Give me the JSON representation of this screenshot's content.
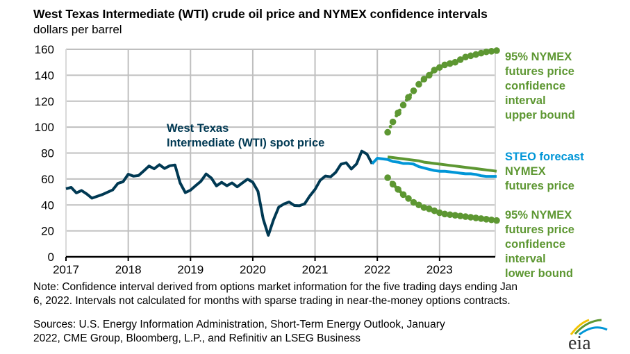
{
  "title": "West Texas Intermediate (WTI) crude oil price and NYMEX confidence intervals",
  "subtitle": "dollars per barrel",
  "labels": {
    "wti_line1": "West Texas",
    "wti_line2": "Intermediate (WTI) spot price",
    "upper": [
      "95% NYMEX",
      "futures price",
      "confidence",
      "interval",
      "upper bound"
    ],
    "steo": "STEO forecast",
    "nymex": [
      "NYMEX",
      "futures price"
    ],
    "lower": [
      "95% NYMEX",
      "futures price",
      "confidence",
      "interval",
      "lower bound"
    ]
  },
  "note": [
    "Note: Confidence interval derived from options market information for the five trading days ending Jan",
    "6, 2022. Intervals not calculated for months with sparse trading in near-the-money options contracts."
  ],
  "sources": [
    "Sources: U.S. Energy Information Administration, Short-Term Energy Outlook, January",
    "2022, CME Group, Bloomberg, L.P., and Refinitiv an LSEG Business"
  ],
  "logo_text": "eia",
  "colors": {
    "wti": "#003953",
    "steo": "#0096d7",
    "nymex": "#5d9732",
    "grid": "#bfbfbf"
  },
  "chart_data": {
    "type": "line",
    "title": "West Texas Intermediate (WTI) crude oil price and NYMEX confidence intervals",
    "ylabel": "dollars per barrel",
    "ylim": [
      0,
      160
    ],
    "yticks": [
      0,
      20,
      40,
      60,
      80,
      100,
      120,
      140,
      160
    ],
    "xticks": [
      "2017",
      "2018",
      "2019",
      "2020",
      "2021",
      "2022",
      "2023"
    ],
    "xrange": [
      "2017-01",
      "2023-12"
    ],
    "grid": true,
    "series": [
      {
        "name": "West Texas Intermediate (WTI) spot price",
        "start": "2017-01",
        "values": [
          52.5,
          53.5,
          49.3,
          51.1,
          48.5,
          45.2,
          46.6,
          48.0,
          49.8,
          51.6,
          56.6,
          57.9,
          63.7,
          62.2,
          62.7,
          66.3,
          70.0,
          67.9,
          71.0,
          68.1,
          70.2,
          70.8,
          57.0,
          49.5,
          51.4,
          54.9,
          58.2,
          63.9,
          60.8,
          54.7,
          57.4,
          54.8,
          57.0,
          54.0,
          57.0,
          59.9,
          57.5,
          50.5,
          29.2,
          16.6,
          28.6,
          38.3,
          40.7,
          42.3,
          39.6,
          39.4,
          40.9,
          47.0,
          52.0,
          59.0,
          62.3,
          61.7,
          65.2,
          71.4,
          72.5,
          67.7,
          71.6,
          81.5,
          79.2,
          71.7
        ]
      },
      {
        "name": "STEO forecast",
        "start": "2021-12",
        "values": [
          71.7,
          76.0,
          75.5,
          75.0,
          73.5,
          73.0,
          72.0,
          72.0,
          71.5,
          69.5,
          68.5,
          67.5,
          66.5,
          66.0,
          66.0,
          65.5,
          65.0,
          64.5,
          64.0,
          64.0,
          63.5,
          62.5,
          62.0,
          62.0,
          62.0
        ]
      },
      {
        "name": "NYMEX futures price",
        "start": "2022-03",
        "values": [
          77.0,
          76.5,
          76.0,
          75.5,
          75.0,
          74.5,
          74.0,
          73.0,
          72.5,
          72.0,
          71.5,
          71.0,
          70.5,
          70.0,
          69.5,
          69.0,
          68.5,
          68.0,
          67.5,
          67.0,
          66.5,
          66.0
        ]
      },
      {
        "name": "95% NYMEX futures price confidence interval upper bound",
        "start": "2022-03",
        "values": [
          96,
          104,
          111,
          117,
          123,
          128,
          133,
          137,
          140,
          144,
          146,
          148,
          149,
          150,
          152,
          154,
          155,
          156,
          157,
          158,
          158.5,
          159
        ]
      },
      {
        "name": "95% NYMEX futures price confidence interval lower bound",
        "start": "2022-03",
        "values": [
          61,
          56,
          52,
          48,
          45,
          42,
          40,
          38,
          37,
          35.5,
          34,
          33,
          32.5,
          32,
          31.5,
          31,
          30.5,
          30,
          29.5,
          29,
          28.5,
          28
        ]
      }
    ]
  }
}
